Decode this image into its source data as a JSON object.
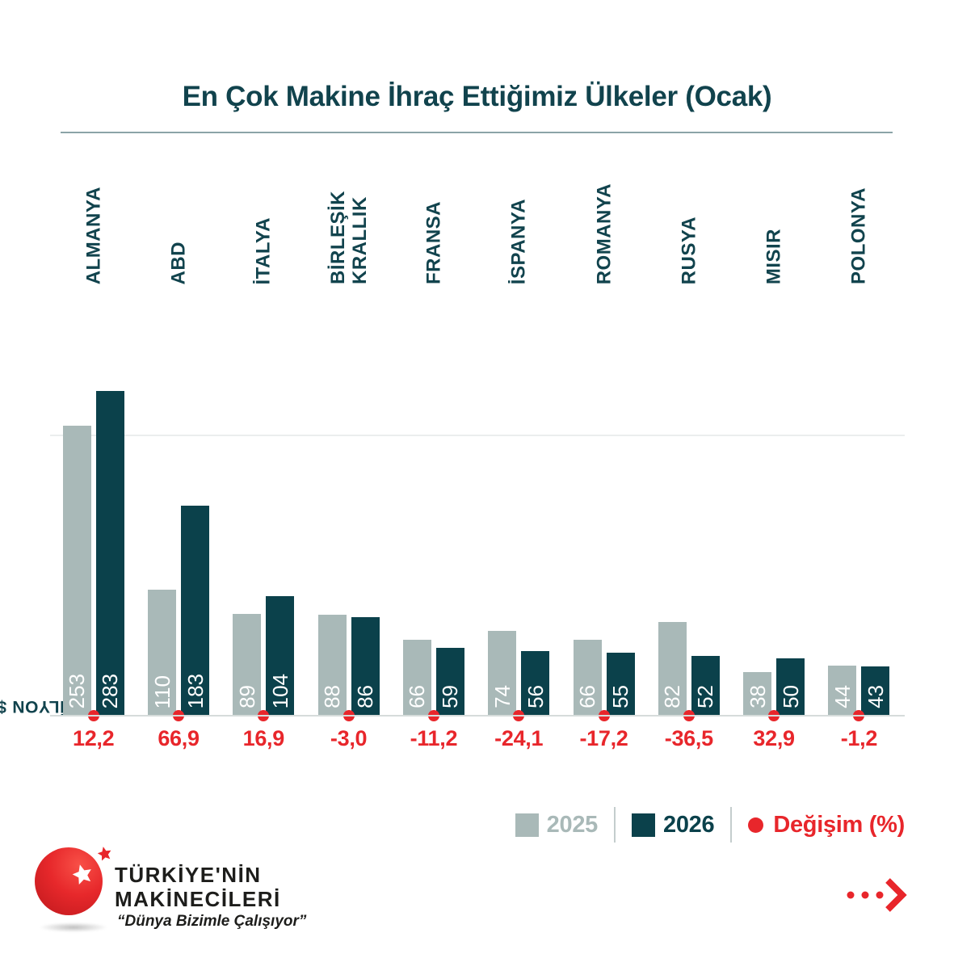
{
  "title": "En Çok Makine İhraç Ettiğimiz Ülkeler (Ocak)",
  "y_axis_label": "MİLYON $",
  "chart_data": {
    "type": "bar",
    "title": "En Çok Makine İhraç Ettiğimiz Ülkeler (Ocak)",
    "xlabel": "",
    "ylabel": "MİLYON $",
    "categories": [
      "ALMANYA",
      "ABD",
      "İTALYA",
      "BİRLEŞİK KRALLIK",
      "FRANSA",
      "İSPANYA",
      "ROMANYA",
      "RUSYA",
      "MISIR",
      "POLONYA"
    ],
    "category_lines": [
      [
        "ALMANYA"
      ],
      [
        "ABD"
      ],
      [
        "İTALYA"
      ],
      [
        "BİRLEŞİK",
        "KRALLIK"
      ],
      [
        "FRANSA"
      ],
      [
        "İSPANYA"
      ],
      [
        "ROMANYA"
      ],
      [
        "RUSYA"
      ],
      [
        "MISIR"
      ],
      [
        "POLONYA"
      ]
    ],
    "series": [
      {
        "name": "2025",
        "color": "#a9b9b8",
        "values": [
          253,
          110,
          89,
          88,
          66,
          74,
          66,
          82,
          38,
          44
        ]
      },
      {
        "name": "2026",
        "color": "#0b414b",
        "values": [
          283,
          183,
          104,
          86,
          59,
          56,
          55,
          52,
          50,
          43
        ]
      }
    ],
    "change_pct_labels": [
      "12,2",
      "66,9",
      "16,9",
      "-3,0",
      "-11,2",
      "-24,1",
      "-17,2",
      "-36,5",
      "32,9",
      "-1,2"
    ],
    "legend_entries": [
      "2025",
      "2026",
      "Değişim (%)"
    ],
    "legend_position": "bottom-right",
    "grid": "single light horizontal gridline near top of tallest 2025 bar",
    "ylim": [
      0,
      300
    ]
  },
  "legend": {
    "y2025": "2025",
    "y2026": "2026",
    "change": "Değişim (%)"
  },
  "logo": {
    "line1": "TÜRKİYE'NİN",
    "line2": "MAKİNECİLERİ",
    "tagline": "“Dünya Bizimle Çalışıyor”"
  },
  "icons": {
    "change_marker": "red-dot",
    "next_arrow": "three-dots-chevron-right",
    "logo_inner": "white-star",
    "logo_outer": "red-star"
  },
  "colors": {
    "accent_red": "#e8262b",
    "bar_2025": "#a9b9b8",
    "bar_2026": "#0b414b",
    "title_teal": "#11434d"
  }
}
